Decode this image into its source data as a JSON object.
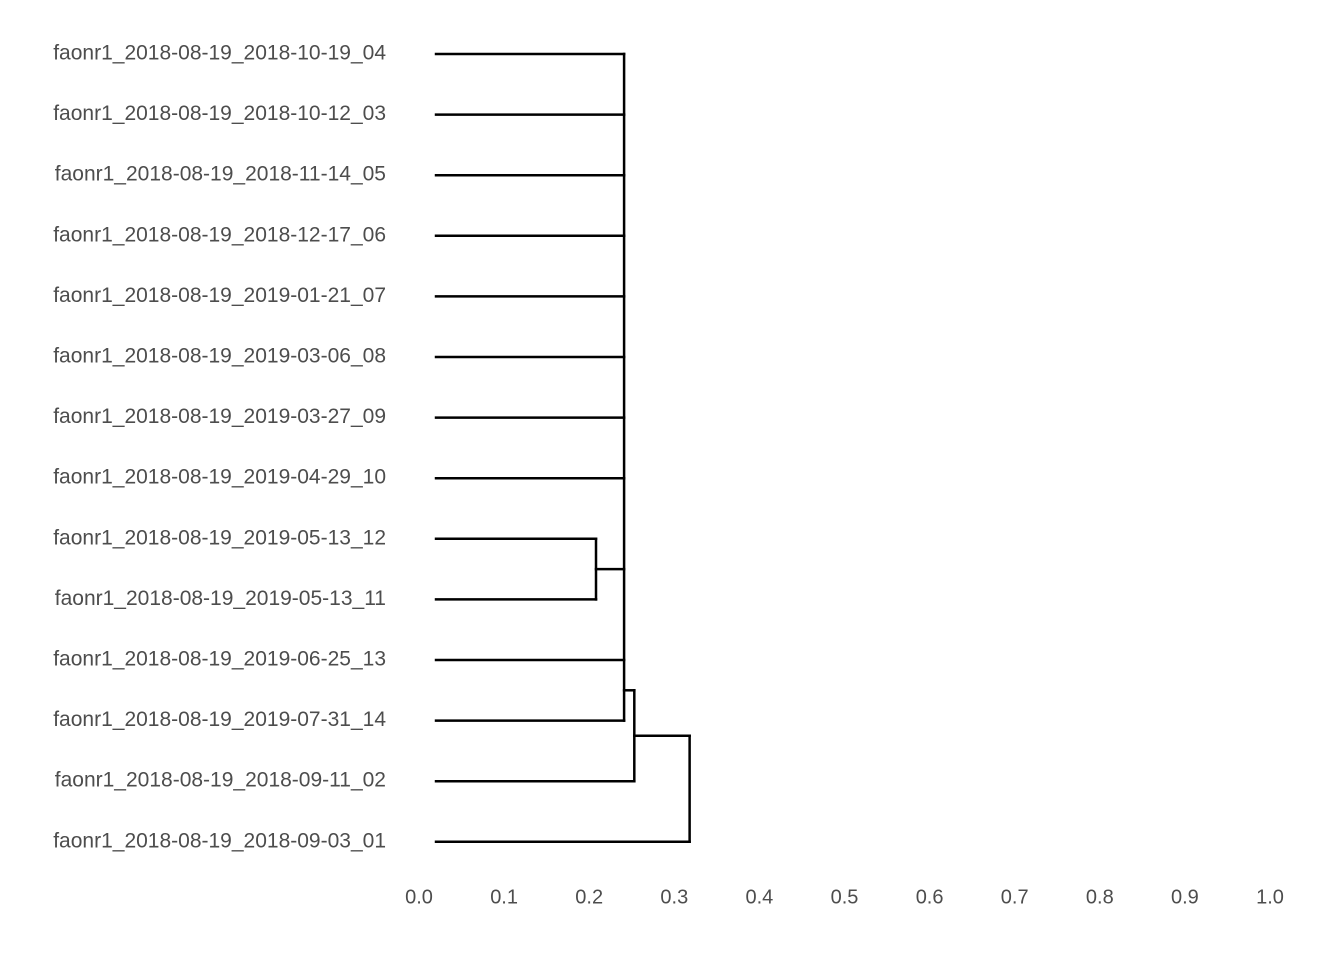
{
  "chart_data": {
    "type": "dendrogram",
    "orientation": "horizontal",
    "color": "#000000",
    "leaf_height": 0.02,
    "xlim": [
      0.0,
      1.0
    ],
    "xticks": [
      {
        "value": 0,
        "label": "0.0"
      },
      0.1,
      0.2,
      0.3,
      0.4,
      0.5,
      0.6,
      0.7,
      0.8,
      0.9,
      {
        "value": 1,
        "label": "1.0"
      }
    ],
    "tree": {
      "height": 0.318,
      "children": [
        {
          "height": 0.253,
          "children": [
            {
              "height": 0.241,
              "children": [
                {
                  "label": "faonr1_2018-08-19_2018-10-19_04"
                },
                {
                  "label": "faonr1_2018-08-19_2018-10-12_03"
                },
                {
                  "label": "faonr1_2018-08-19_2018-11-14_05"
                },
                {
                  "label": "faonr1_2018-08-19_2018-12-17_06"
                },
                {
                  "label": "faonr1_2018-08-19_2019-01-21_07"
                },
                {
                  "label": "faonr1_2018-08-19_2019-03-06_08"
                },
                {
                  "label": "faonr1_2018-08-19_2019-03-27_09"
                },
                {
                  "label": "faonr1_2018-08-19_2019-04-29_10"
                },
                {
                  "height": 0.208,
                  "children": [
                    {
                      "label": "faonr1_2018-08-19_2019-05-13_12"
                    },
                    {
                      "label": "faonr1_2018-08-19_2019-05-13_11"
                    }
                  ]
                },
                {
                  "label": "faonr1_2018-08-19_2019-06-25_13"
                },
                {
                  "label": "faonr1_2018-08-19_2019-07-31_14"
                }
              ]
            },
            {
              "label": "faonr1_2018-08-19_2018-09-11_02"
            }
          ]
        },
        {
          "label": "faonr1_2018-08-19_2018-09-03_01"
        }
      ]
    }
  }
}
